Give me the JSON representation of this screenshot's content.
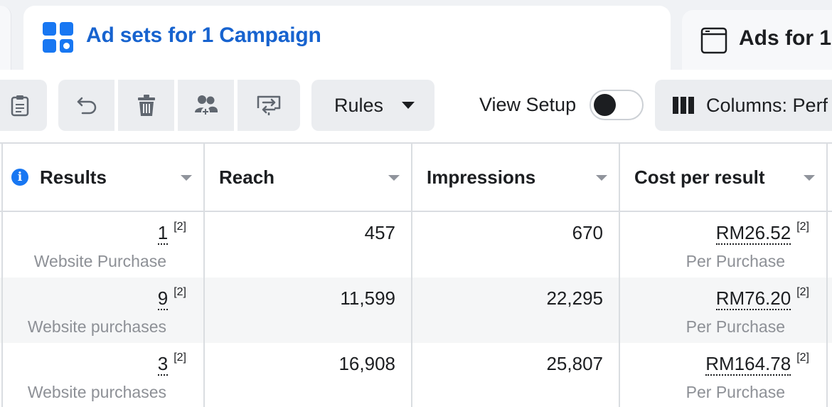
{
  "tabs": {
    "active": {
      "title": "Ad sets for 1 Campaign",
      "icon": "grid-icon"
    },
    "next": {
      "title": "Ads for 1",
      "icon": "ad-window-icon"
    }
  },
  "toolbar": {
    "rules_label": "Rules",
    "view_setup_label": "View Setup",
    "view_setup_on": false,
    "columns_label": "Columns: Perf"
  },
  "table": {
    "columns": [
      {
        "label": "Results",
        "info": "i"
      },
      {
        "label": "Reach"
      },
      {
        "label": "Impressions"
      },
      {
        "label": "Cost per result"
      }
    ],
    "rows": [
      {
        "results": "1",
        "results_note": "[2]",
        "results_label": "Website Purchase",
        "reach": "457",
        "impressions": "670",
        "cost": "RM26.52",
        "cost_note": "[2]",
        "cost_label": "Per Purchase"
      },
      {
        "results": "9",
        "results_note": "[2]",
        "results_label": "Website purchases",
        "reach": "11,599",
        "impressions": "22,295",
        "cost": "RM76.20",
        "cost_note": "[2]",
        "cost_label": "Per Purchase"
      },
      {
        "results": "3",
        "results_note": "[2]",
        "results_label": "Website purchases",
        "reach": "16,908",
        "impressions": "25,807",
        "cost": "RM164.78",
        "cost_note": "[2]",
        "cost_label": "Per Purchase"
      }
    ]
  },
  "colors": {
    "accent": "#1763cf",
    "info_blue": "#1877f2",
    "button_bg": "#ebedf0",
    "border": "#dadde1",
    "muted": "#8d9096"
  }
}
